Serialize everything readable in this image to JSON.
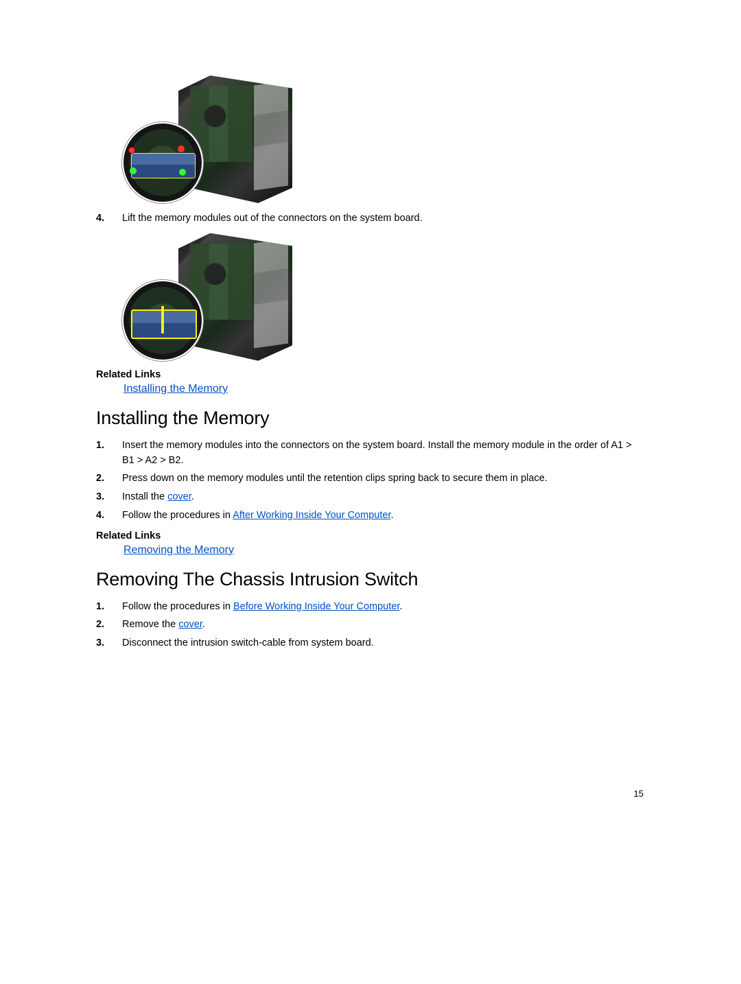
{
  "colors": {
    "text": "#000000",
    "link": "#0050c8",
    "background": "#ffffff"
  },
  "typography": {
    "body_font": "Arial, Helvetica, sans-serif",
    "body_size_pt": 11,
    "heading_size_pt": 20,
    "heading_weight": 400,
    "bold_weight": 700
  },
  "page_number": "15",
  "removing_memory": {
    "step4_number": "4.",
    "step4_text": "Lift the memory modules out of the connectors on the system board.",
    "related_links_label": "Related Links",
    "related_links": [
      {
        "text": "Installing the Memory"
      }
    ]
  },
  "installing_memory": {
    "heading": "Installing the Memory",
    "steps": [
      {
        "text": "Insert the memory modules into the connectors on the system board. Install the memory module in the order of A1 > B1 > A2 > B2."
      },
      {
        "text": "Press down on the memory modules until the retention clips spring back to secure them in place."
      },
      {
        "prefix": "Install the ",
        "link": "cover",
        "suffix": "."
      },
      {
        "prefix": "Follow the procedures in ",
        "link": "After Working Inside Your Computer",
        "suffix": "."
      }
    ],
    "related_links_label": "Related Links",
    "related_links": [
      {
        "text": "Removing the Memory"
      }
    ]
  },
  "removing_chassis": {
    "heading": "Removing The Chassis Intrusion Switch",
    "steps": [
      {
        "prefix": "Follow the procedures in ",
        "link": "Before Working Inside Your Computer",
        "suffix": "."
      },
      {
        "prefix": "Remove the ",
        "link": "cover",
        "suffix": "."
      },
      {
        "text": "Disconnect the intrusion switch-cable from system board."
      }
    ]
  }
}
